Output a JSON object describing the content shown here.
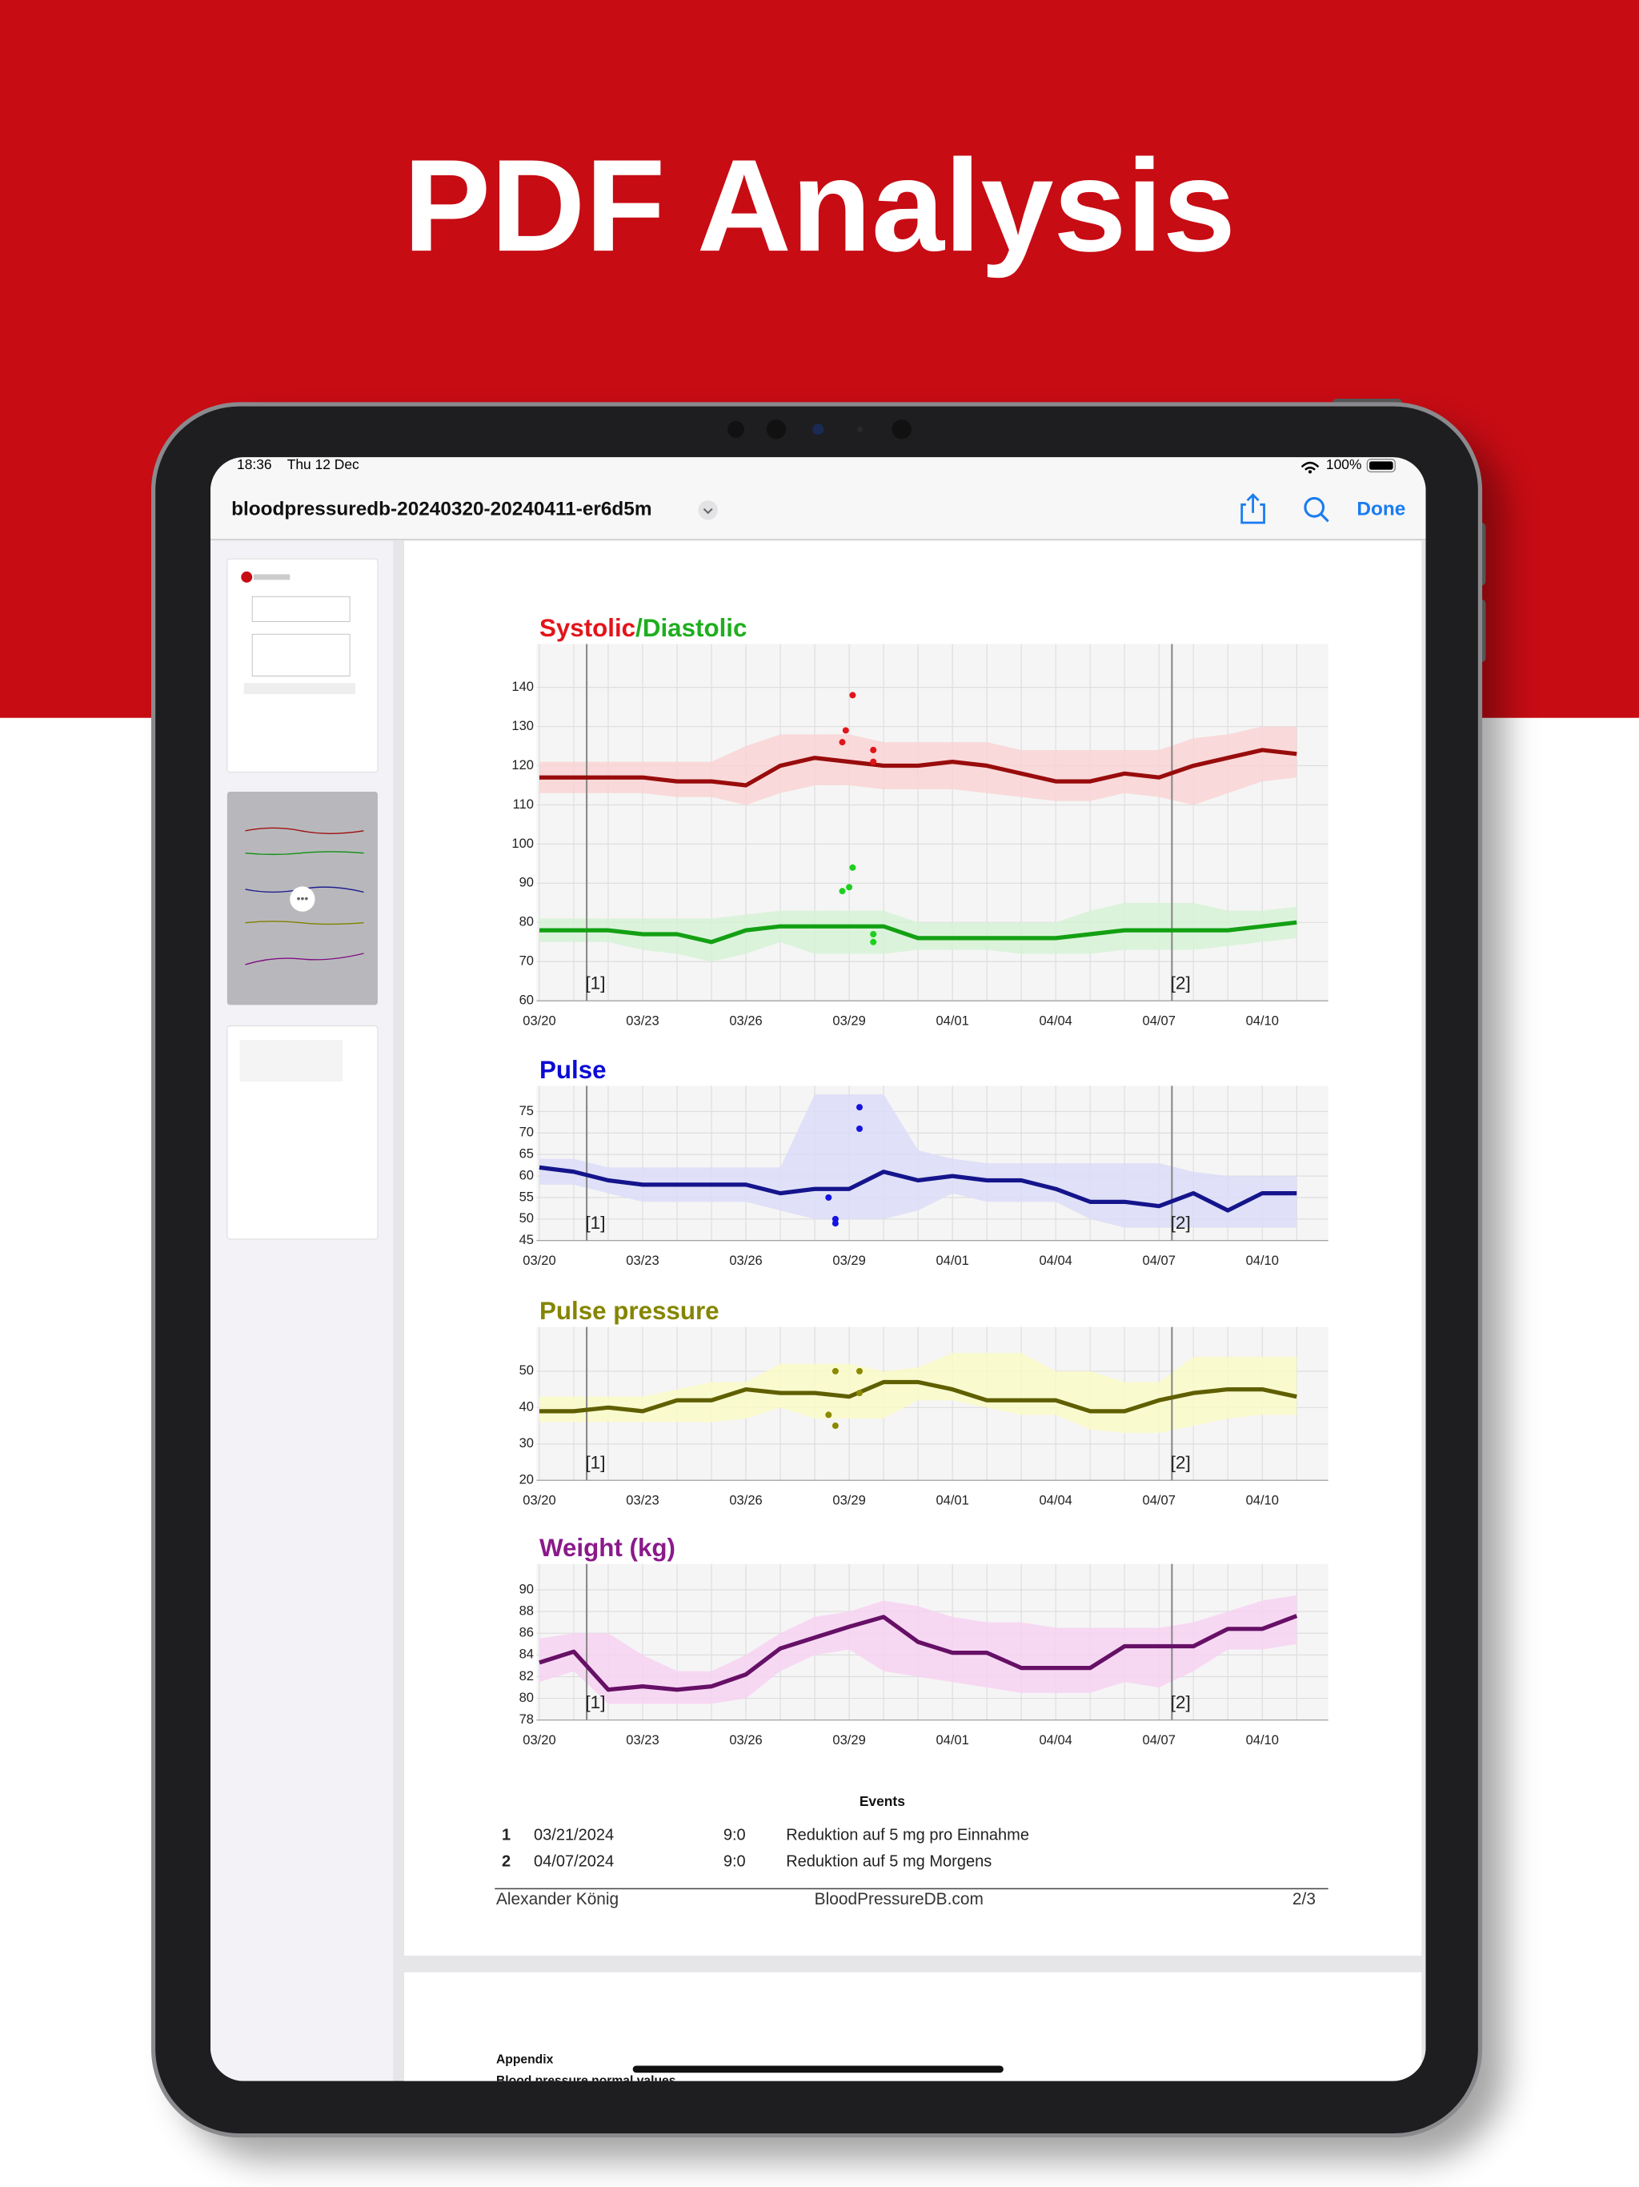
{
  "banner": {
    "title": "PDF Analysis"
  },
  "status_bar": {
    "time": "18:36",
    "date": "Thu 12 Dec",
    "battery": "100%"
  },
  "toolbar": {
    "file_name": "bloodpressuredb-20240320-20240411-er6d5m",
    "done": "Done"
  },
  "chart_data": [
    {
      "type": "line",
      "title_parts": [
        {
          "text": "Systolic",
          "color": "#e2141a"
        },
        {
          "text": "/Diastolic",
          "color": "#1fae1f"
        }
      ],
      "categories": [
        "03/20",
        null,
        null,
        "03/23",
        null,
        null,
        "03/26",
        null,
        null,
        "03/29",
        null,
        null,
        "04/01",
        null,
        null,
        "04/04",
        null,
        null,
        "04/07",
        null,
        null,
        "04/10",
        null
      ],
      "ylim": [
        60,
        150
      ],
      "yticks": [
        60,
        70,
        80,
        90,
        100,
        110,
        120,
        130,
        140
      ],
      "grid": true,
      "event_labels": [
        "[1]",
        "[2]"
      ],
      "events_x": [
        1.375,
        18.375
      ],
      "series": [
        {
          "name": "Systolic",
          "color": "#990c0c",
          "band_color": "#f9d4d4",
          "values": [
            117,
            117,
            117,
            117,
            116,
            116,
            115,
            120,
            122,
            121,
            120,
            120,
            121,
            120,
            118,
            116,
            116,
            118,
            117,
            120,
            122,
            124,
            123
          ],
          "band_low": [
            113,
            113,
            113,
            113,
            112,
            112,
            110,
            113,
            115,
            115,
            114,
            114,
            114,
            113,
            112,
            111,
            111,
            113,
            112,
            110,
            113,
            116,
            117
          ],
          "band_high": [
            121,
            121,
            121,
            121,
            121,
            121,
            125,
            128,
            128,
            128,
            126,
            126,
            126,
            126,
            124,
            124,
            124,
            124,
            124,
            127,
            128,
            130,
            130
          ],
          "readings": {
            "x": [
              9.1,
              8.9,
              8.8,
              9.7,
              9.7
            ],
            "values": [
              138,
              129,
              126,
              124,
              121
            ],
            "color": "#e2141a"
          }
        },
        {
          "name": "Diastolic",
          "color": "#13a013",
          "band_color": "#d6f2d6",
          "values": [
            78,
            78,
            78,
            77,
            77,
            75,
            78,
            79,
            79,
            79,
            79,
            76,
            76,
            76,
            76,
            76,
            77,
            78,
            78,
            78,
            78,
            79,
            80
          ],
          "band_low": [
            75,
            75,
            75,
            73,
            72,
            70,
            72,
            75,
            72,
            72,
            72,
            73,
            73,
            73,
            72,
            72,
            72,
            73,
            73,
            73,
            74,
            75,
            76
          ],
          "band_high": [
            81,
            81,
            81,
            81,
            81,
            81,
            82,
            83,
            83,
            83,
            83,
            80,
            80,
            80,
            80,
            80,
            83,
            85,
            85,
            85,
            83,
            83,
            84
          ],
          "readings": {
            "x": [
              9.1,
              9.0,
              8.8,
              9.7,
              9.7
            ],
            "values": [
              94,
              89,
              88,
              77,
              75
            ],
            "color": "#1fcf1f"
          }
        }
      ]
    },
    {
      "type": "line",
      "title_parts": [
        {
          "text": "Pulse",
          "color": "#0b0bd6"
        }
      ],
      "categories": [
        "03/20",
        null,
        null,
        "03/23",
        null,
        null,
        "03/26",
        null,
        null,
        "03/29",
        null,
        null,
        "04/01",
        null,
        null,
        "04/04",
        null,
        null,
        "04/07",
        null,
        null,
        "04/10",
        null
      ],
      "ylim": [
        45,
        80
      ],
      "yticks": [
        45,
        50,
        55,
        60,
        65,
        70,
        75
      ],
      "grid": true,
      "event_labels": [
        "[1]",
        "[2]"
      ],
      "events_x": [
        1.375,
        18.375
      ],
      "series": [
        {
          "name": "Pulse",
          "color": "#14148c",
          "band_color": "#dcdcf8",
          "values": [
            62,
            61,
            59,
            58,
            58,
            58,
            58,
            56,
            57,
            57,
            61,
            59,
            60,
            59,
            59,
            57,
            54,
            54,
            53,
            56,
            52,
            56,
            56
          ],
          "band_low": [
            58,
            58,
            56,
            54,
            54,
            54,
            54,
            52,
            50,
            50,
            50,
            52,
            56,
            54,
            54,
            54,
            50,
            48,
            48,
            48,
            48,
            48,
            48
          ],
          "band_high": [
            64,
            64,
            62,
            62,
            62,
            62,
            62,
            62,
            79,
            79,
            79,
            66,
            64,
            63,
            63,
            63,
            63,
            63,
            63,
            61,
            60,
            60,
            60
          ],
          "readings": {
            "x": [
              8.4,
              8.6,
              8.6,
              9.3,
              9.3
            ],
            "values": [
              55,
              50,
              49,
              76,
              71
            ],
            "color": "#1414e0"
          }
        }
      ]
    },
    {
      "type": "line",
      "title_parts": [
        {
          "text": "Pulse pressure",
          "color": "#858500"
        }
      ],
      "categories": [
        "03/20",
        null,
        null,
        "03/23",
        null,
        null,
        "03/26",
        null,
        null,
        "03/29",
        null,
        null,
        "04/01",
        null,
        null,
        "04/04",
        null,
        null,
        "04/07",
        null,
        null,
        "04/10",
        null
      ],
      "ylim": [
        20,
        61
      ],
      "yticks": [
        20,
        30,
        40,
        50
      ],
      "grid": true,
      "event_labels": [
        "[1]",
        "[2]"
      ],
      "events_x": [
        1.375,
        18.375
      ],
      "series": [
        {
          "name": "Pulse pressure",
          "color": "#5f5f00",
          "band_color": "#fafac8",
          "values": [
            39,
            39,
            40,
            39,
            42,
            42,
            45,
            44,
            44,
            43,
            47,
            47,
            45,
            42,
            42,
            42,
            39,
            39,
            42,
            44,
            45,
            45,
            43
          ],
          "band_low": [
            36,
            36,
            36,
            36,
            36,
            36,
            37,
            40,
            37,
            37,
            37,
            42,
            42,
            40,
            38,
            38,
            34,
            33,
            33,
            35,
            37,
            38,
            38
          ],
          "band_high": [
            43,
            43,
            43,
            43,
            45,
            47,
            47,
            52,
            52,
            52,
            50,
            51,
            55,
            55,
            55,
            50,
            50,
            47,
            47,
            54,
            54,
            54,
            54
          ],
          "readings": {
            "x": [
              8.6,
              9.3,
              9.3,
              8.4,
              8.6
            ],
            "values": [
              50,
              50,
              44,
              38,
              35
            ],
            "color": "#8a8a00"
          }
        }
      ]
    },
    {
      "type": "line",
      "title_parts": [
        {
          "text": "Weight (kg)",
          "color": "#8a1a8a"
        }
      ],
      "categories": [
        "03/20",
        null,
        null,
        "03/23",
        null,
        null,
        "03/26",
        null,
        null,
        "03/29",
        null,
        null,
        "04/01",
        null,
        null,
        "04/04",
        null,
        null,
        "04/07",
        null,
        null,
        "04/10",
        null
      ],
      "ylim": [
        78,
        92
      ],
      "yticks": [
        78,
        80,
        82,
        84,
        86,
        88,
        90
      ],
      "grid": true,
      "event_labels": [
        "[1]",
        "[2]"
      ],
      "events_x": [
        1.375,
        18.375
      ],
      "series": [
        {
          "name": "Weight",
          "color": "#661066",
          "band_color": "#f7d2f2",
          "values": [
            83.3,
            84.3,
            80.8,
            81.1,
            80.8,
            81.1,
            82.2,
            84.6,
            85.6,
            86.6,
            87.5,
            85.2,
            84.2,
            84.2,
            82.8,
            82.8,
            82.8,
            84.8,
            84.8,
            84.8,
            86.4,
            86.4,
            87.6
          ],
          "band_low": [
            81.5,
            82.5,
            79.5,
            79.5,
            79.5,
            79.5,
            80,
            82.5,
            84,
            84.5,
            82.5,
            82,
            81.5,
            81,
            80.5,
            80.5,
            80.5,
            81.5,
            81,
            82.5,
            84.5,
            84.5,
            85
          ],
          "band_high": [
            85.5,
            86,
            86,
            84,
            82.5,
            82.5,
            84,
            86,
            87.5,
            88,
            89,
            88.5,
            87.5,
            87,
            87,
            86.5,
            86.5,
            86.5,
            86.5,
            87,
            88,
            89,
            89.5
          ]
        }
      ]
    }
  ],
  "events": {
    "title": "Events",
    "rows": [
      [
        "1",
        "03/21/2024",
        "9:0",
        "Reduktion auf 5 mg pro Einnahme"
      ],
      [
        "2",
        "04/07/2024",
        "9:0",
        "Reduktion auf 5 mg Morgens"
      ]
    ]
  },
  "footer": {
    "author": "Alexander König",
    "site": "BloodPressureDB.com",
    "page": "2/3"
  },
  "next_page": {
    "heading": "Appendix",
    "subheading": "Blood pressure normal values"
  }
}
